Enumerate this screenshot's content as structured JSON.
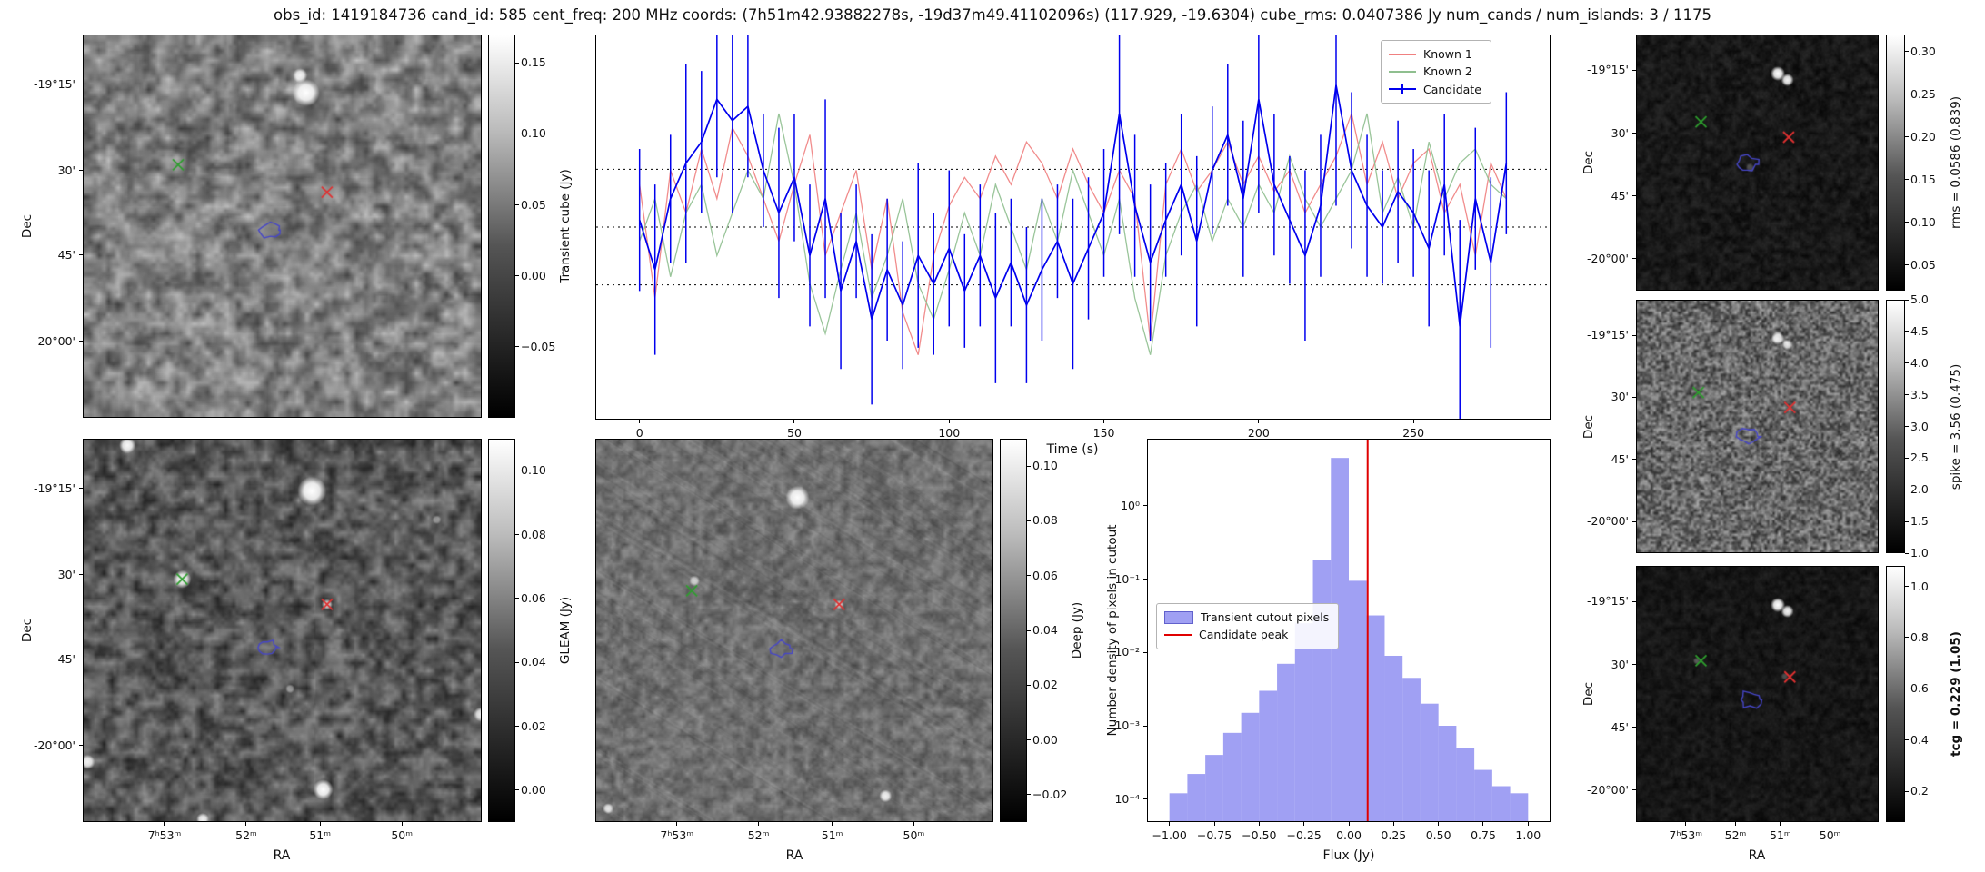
{
  "title": "obs_id: 1419184736 cand_id: 585 cent_freq: 200 MHz coords: (7h51m42.93882278s, -19d37m49.41102096s) (117.929, -19.6304) cube_rms: 0.0407386 Jy num_cands / num_islands: 3 / 1175",
  "axes": {
    "dec_label": "Dec",
    "ra_label": "RA",
    "dec_ticks": [
      "-19°15'",
      "30'",
      "45'",
      "-20°00'"
    ],
    "ra_ticks": [
      "7ʰ53ᵐ",
      "52ᵐ",
      "51ᵐ",
      "50ᵐ"
    ],
    "lc_xtick_values": [
      0,
      50,
      100,
      150,
      200,
      250
    ],
    "lc_xtick_labels": [
      "0",
      "50",
      "100",
      "150",
      "200",
      "250"
    ],
    "hist_xtick_values": [
      -1.0,
      -0.75,
      -0.5,
      -0.25,
      0.0,
      0.25,
      0.5,
      0.75,
      1.0
    ],
    "hist_xtick_labels": [
      "−1.00",
      "−0.75",
      "−0.50",
      "−0.25",
      "0.00",
      "0.25",
      "0.50",
      "0.75",
      "1.00"
    ],
    "hist_ytick_values": [
      1,
      0.1,
      0.01,
      0.001,
      0.0001
    ],
    "hist_ytick_labels": [
      "10⁰",
      "10⁻¹",
      "10⁻²",
      "10⁻³",
      "10⁻⁴"
    ]
  },
  "panels": {
    "transient_cube": {
      "colorbar": {
        "label": "Transient cube (Jy)",
        "range": [
          -0.1,
          0.17
        ],
        "ticks": [
          0.15,
          0.1,
          0.05,
          0.0,
          -0.05
        ],
        "tick_labels": [
          "0.15",
          "0.10",
          "0.05",
          "0.00",
          "−0.05"
        ]
      },
      "markers": [
        {
          "shape": "x",
          "color": "#2e9e2e",
          "x": 0.238,
          "y": 0.339
        },
        {
          "shape": "x",
          "color": "#e03131",
          "x": 0.613,
          "y": 0.411
        },
        {
          "shape": "contour",
          "color": "#4646c8",
          "x": 0.47,
          "y": 0.51
        }
      ]
    },
    "gleam": {
      "colorbar": {
        "label": "GLEAM (Jy)",
        "range": [
          -0.01,
          0.11
        ],
        "ticks": [
          0.1,
          0.08,
          0.06,
          0.04,
          0.02,
          0.0
        ],
        "tick_labels": [
          "0.10",
          "0.08",
          "0.06",
          "0.04",
          "0.02",
          "0.00"
        ]
      },
      "markers": [
        {
          "shape": "x",
          "color": "#2e9e2e",
          "x": 0.248,
          "y": 0.366
        },
        {
          "shape": "x",
          "color": "#e03131",
          "x": 0.613,
          "y": 0.432
        },
        {
          "shape": "contour",
          "color": "#4646c8",
          "x": 0.463,
          "y": 0.545
        }
      ]
    },
    "deep": {
      "colorbar": {
        "label": "Deep (Jy)",
        "range": [
          -0.03,
          0.11
        ],
        "ticks": [
          0.1,
          0.08,
          0.06,
          0.04,
          0.02,
          0.0,
          -0.02
        ],
        "tick_labels": [
          "0.10",
          "0.08",
          "0.06",
          "0.04",
          "0.02",
          "0.00",
          "−0.02"
        ]
      },
      "markers": [
        {
          "shape": "x",
          "color": "#2e9e2e",
          "x": 0.241,
          "y": 0.396
        },
        {
          "shape": "x",
          "color": "#e03131",
          "x": 0.613,
          "y": 0.432
        },
        {
          "shape": "contour",
          "color": "#4646c8",
          "x": 0.467,
          "y": 0.548
        }
      ]
    },
    "rms": {
      "colorbar": {
        "label": "rms = 0.0586 (0.839)",
        "range": [
          0.02,
          0.32
        ],
        "ticks": [
          0.3,
          0.25,
          0.2,
          0.15,
          0.1,
          0.05
        ],
        "tick_labels": [
          "0.30",
          "0.25",
          "0.20",
          "0.15",
          "0.10",
          "0.05"
        ]
      },
      "markers": [
        {
          "shape": "x",
          "color": "#2e9e2e",
          "x": 0.266,
          "y": 0.34
        },
        {
          "shape": "x",
          "color": "#e03131",
          "x": 0.63,
          "y": 0.4
        },
        {
          "shape": "contour",
          "color": "#4646c8",
          "x": 0.458,
          "y": 0.507
        }
      ]
    },
    "spike": {
      "colorbar": {
        "label": "spike = 3.56 (0.475)",
        "range": [
          1.0,
          5.0
        ],
        "ticks": [
          5.0,
          4.5,
          4.0,
          3.5,
          3.0,
          2.5,
          2.0,
          1.5,
          1.0
        ],
        "tick_labels": [
          "5.0",
          "4.5",
          "4.0",
          "3.5",
          "3.0",
          "2.5",
          "2.0",
          "1.5",
          "1.0"
        ]
      },
      "markers": [
        {
          "shape": "x",
          "color": "#2e9e2e",
          "x": 0.255,
          "y": 0.365
        },
        {
          "shape": "x",
          "color": "#e03131",
          "x": 0.635,
          "y": 0.425
        },
        {
          "shape": "contour",
          "color": "#4646c8",
          "x": 0.464,
          "y": 0.54
        }
      ]
    },
    "tcg": {
      "colorbar": {
        "label": "tcg = 0.229 (1.05)",
        "bold": true,
        "range": [
          0.08,
          1.08
        ],
        "ticks": [
          1.0,
          0.8,
          0.6,
          0.4,
          0.2
        ],
        "tick_labels": [
          "1.0",
          "0.8",
          "0.6",
          "0.4",
          "0.2"
        ]
      },
      "markers": [
        {
          "shape": "x",
          "color": "#2e9e2e",
          "x": 0.266,
          "y": 0.369
        },
        {
          "shape": "x",
          "color": "#e03131",
          "x": 0.635,
          "y": 0.433
        },
        {
          "shape": "contour",
          "color": "#4646c8",
          "x": 0.469,
          "y": 0.522
        }
      ]
    }
  },
  "chart_data": [
    {
      "type": "line",
      "title": "",
      "xlabel": "Time (s)",
      "ylabel": "",
      "xlim": [
        -14,
        294
      ],
      "ylim": [
        -0.135,
        0.135
      ],
      "grid": false,
      "legend_position": "upper right",
      "reference_lines": [
        0.0407,
        0.0,
        -0.0407
      ],
      "x": [
        0,
        5,
        10,
        15,
        20,
        25,
        30,
        35,
        40,
        45,
        50,
        55,
        60,
        65,
        70,
        75,
        80,
        85,
        90,
        95,
        100,
        105,
        110,
        115,
        120,
        125,
        130,
        135,
        140,
        145,
        150,
        155,
        160,
        165,
        170,
        175,
        180,
        185,
        190,
        195,
        200,
        205,
        210,
        215,
        220,
        225,
        230,
        235,
        240,
        245,
        250,
        255,
        260,
        265,
        270,
        275,
        280
      ],
      "series": [
        {
          "name": "Known 1",
          "color": "#f08080",
          "values": [
            0.03,
            -0.05,
            0.04,
            0.01,
            0.055,
            0.02,
            0.07,
            0.05,
            0.02,
            -0.01,
            0.03,
            0.065,
            -0.02,
            0.01,
            0.04,
            -0.03,
            0.02,
            -0.06,
            -0.09,
            -0.02,
            0.015,
            0.035,
            0.02,
            0.05,
            0.03,
            0.06,
            0.045,
            0.02,
            0.055,
            0.03,
            0.01,
            0.04,
            0.02,
            -0.08,
            0.03,
            0.055,
            0.025,
            0.04,
            0.06,
            0.03,
            0.05,
            0.025,
            0.04,
            0.01,
            0.03,
            0.05,
            0.08,
            0.03,
            0.06,
            0.02,
            0.045,
            0.055,
            0.01,
            0.03,
            -0.02,
            0.045,
            0.02
          ]
        },
        {
          "name": "Known 2",
          "color": "#8fbf8f",
          "values": [
            -0.01,
            0.02,
            -0.035,
            0.01,
            0.03,
            -0.02,
            0.01,
            0.04,
            0.02,
            0.08,
            0.03,
            -0.04,
            -0.075,
            -0.03,
            0.01,
            -0.05,
            -0.02,
            0.02,
            -0.04,
            -0.065,
            -0.03,
            0.01,
            -0.02,
            0.03,
            0.0,
            -0.03,
            0.02,
            -0.01,
            0.04,
            0.01,
            -0.02,
            0.02,
            -0.05,
            -0.09,
            -0.02,
            0.01,
            0.03,
            -0.01,
            0.02,
            0.0,
            0.03,
            0.01,
            0.05,
            0.02,
            0.0,
            0.02,
            0.04,
            0.08,
            0.01,
            0.035,
            0.0,
            0.06,
            0.02,
            0.045,
            0.055,
            0.03,
            0.02
          ]
        },
        {
          "name": "Candidate",
          "color": "#0000ee",
          "values": [
            0.005,
            -0.03,
            0.02,
            0.045,
            0.06,
            0.09,
            0.075,
            0.085,
            0.04,
            0.01,
            0.035,
            -0.02,
            0.02,
            -0.045,
            -0.01,
            -0.065,
            -0.03,
            -0.055,
            -0.02,
            -0.04,
            -0.015,
            -0.045,
            -0.02,
            -0.05,
            -0.025,
            -0.055,
            -0.03,
            -0.01,
            -0.04,
            -0.015,
            0.01,
            0.08,
            0.015,
            -0.025,
            0.005,
            0.03,
            -0.01,
            0.04,
            0.065,
            0.02,
            0.09,
            0.03,
            0.005,
            -0.02,
            0.015,
            0.1,
            0.04,
            0.015,
            0.0,
            0.025,
            0.01,
            -0.015,
            0.03,
            -0.07,
            0.02,
            -0.025,
            0.045
          ],
          "errors": [
            0.05,
            0.06,
            0.045,
            0.07,
            0.05,
            0.055,
            0.065,
            0.05,
            0.04,
            0.06,
            0.045,
            0.05,
            0.07,
            0.055,
            0.04,
            0.06,
            0.05,
            0.045,
            0.065,
            0.05,
            0.055,
            0.04,
            0.05,
            0.06,
            0.045,
            0.055,
            0.05,
            0.04,
            0.06,
            0.05,
            0.045,
            0.085,
            0.05,
            0.055,
            0.04,
            0.05,
            0.06,
            0.045,
            0.05,
            0.055,
            0.08,
            0.05,
            0.045,
            0.06,
            0.05,
            0.085,
            0.055,
            0.05,
            0.04,
            0.05,
            0.045,
            0.055,
            0.05,
            0.075,
            0.05,
            0.06,
            0.05
          ]
        }
      ]
    },
    {
      "type": "bar",
      "title": "",
      "xlabel": "Flux (Jy)",
      "ylabel": "Number density of pixels in cutout",
      "yscale": "log",
      "xlim": [
        -1.12,
        1.12
      ],
      "ylim": [
        5e-05,
        8
      ],
      "bin_width": 0.1,
      "bin_centers": [
        -0.95,
        -0.85,
        -0.75,
        -0.65,
        -0.55,
        -0.45,
        -0.35,
        -0.25,
        -0.15,
        -0.05,
        0.05,
        0.15,
        0.25,
        0.35,
        0.45,
        0.55,
        0.65,
        0.75,
        0.85,
        0.95
      ],
      "values": [
        0.00012,
        0.00022,
        0.0004,
        0.0008,
        0.0015,
        0.003,
        0.007,
        0.025,
        0.18,
        4.5,
        0.095,
        0.032,
        0.009,
        0.0045,
        0.002,
        0.001,
        0.0005,
        0.00025,
        0.00015,
        0.00012
      ],
      "candidate_peak": 0.105,
      "bar_color": "#7b7bee",
      "line_color": "#e00000",
      "legend": [
        "Transient cutout pixels",
        "Candidate peak"
      ]
    }
  ]
}
